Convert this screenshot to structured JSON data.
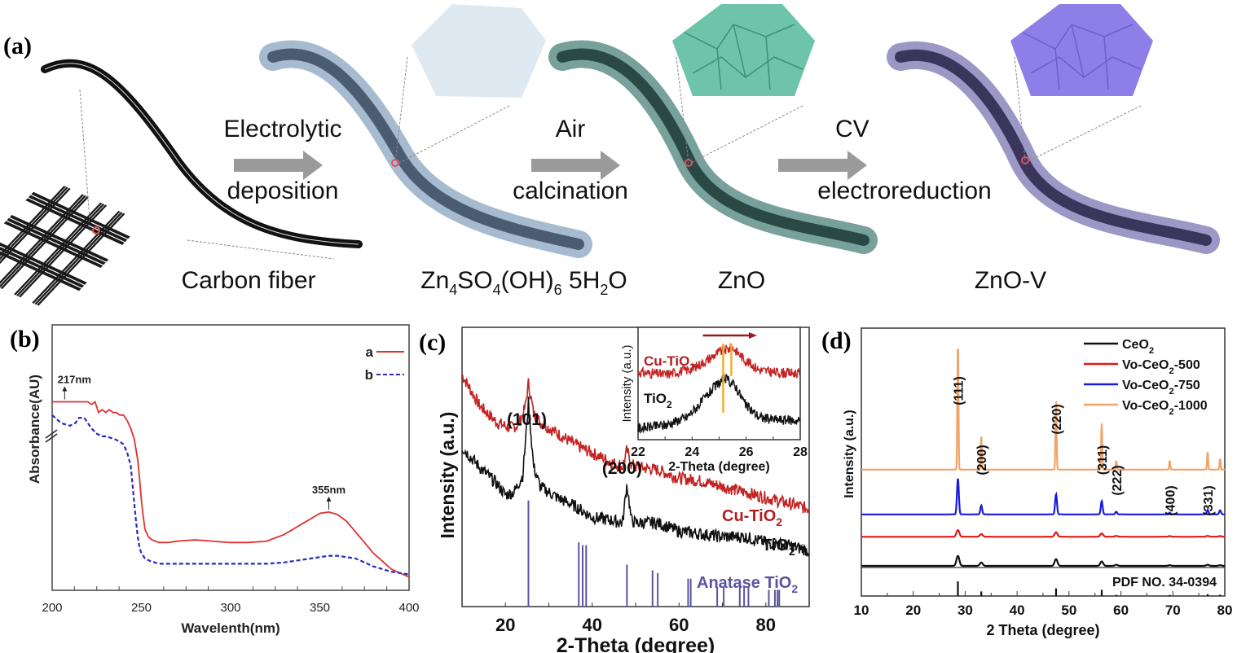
{
  "figure": {
    "panel_labels": [
      "(a)",
      "(b)",
      "(c)",
      "(d)"
    ]
  },
  "schematic": {
    "stages": [
      {
        "label": "Carbon fiber",
        "color": "#1a1a1a"
      },
      {
        "label_main": "Zn",
        "label_parts": [
          "Zn",
          "4",
          "SO",
          "4",
          "(OH)",
          "6",
          " 5H",
          "2",
          "O"
        ],
        "label": "Zn4SO4(OH)6 5H2O",
        "color": "#4a6f95",
        "inset_color": "#dde8f0"
      },
      {
        "label": "ZnO",
        "color": "#1f4a45",
        "inset_color": "#6cc2a7"
      },
      {
        "label": "ZnO-V",
        "color": "#3a3568",
        "inset_color": "#8a7ae6"
      }
    ],
    "arrows": [
      {
        "top": "Electrolytic",
        "bottom": "deposition"
      },
      {
        "top": "Air",
        "bottom": "calcination"
      },
      {
        "top": "CV",
        "bottom": "electroreduction"
      }
    ],
    "arrow_color": "#999999"
  },
  "chart_data": [
    {
      "id": "b",
      "type": "line",
      "title": "",
      "xlabel": "Wavelenth(nm)",
      "ylabel": "Absorbance(AU)",
      "xlim": [
        200,
        400
      ],
      "ylim": [
        0,
        1
      ],
      "xticks": [
        200,
        250,
        300,
        350,
        400
      ],
      "legend": {
        "position": "top-right",
        "entries": [
          "a",
          "b"
        ]
      },
      "annotations": [
        {
          "text": "217nm",
          "x": 207
        },
        {
          "text": "355nm",
          "x": 355
        }
      ],
      "axis_break": true,
      "series": [
        {
          "name": "a",
          "color": "#e03030",
          "style": "solid",
          "x": [
            200,
            205,
            210,
            215,
            220,
            222,
            224,
            226,
            228,
            230,
            232,
            234,
            236,
            238,
            240,
            242,
            244,
            246,
            248,
            249,
            250,
            251,
            252,
            254,
            256,
            258,
            260,
            265,
            270,
            280,
            290,
            300,
            310,
            320,
            330,
            340,
            350,
            355,
            360,
            365,
            370,
            380,
            390,
            400
          ],
          "y": [
            0.71,
            0.71,
            0.71,
            0.71,
            0.71,
            0.7,
            0.71,
            0.67,
            0.68,
            0.67,
            0.68,
            0.67,
            0.67,
            0.66,
            0.66,
            0.64,
            0.61,
            0.57,
            0.49,
            0.42,
            0.34,
            0.28,
            0.23,
            0.2,
            0.19,
            0.185,
            0.18,
            0.18,
            0.185,
            0.19,
            0.185,
            0.18,
            0.18,
            0.185,
            0.21,
            0.25,
            0.29,
            0.295,
            0.285,
            0.26,
            0.22,
            0.14,
            0.08,
            0.05
          ]
        },
        {
          "name": "b",
          "color": "#2a2ab8",
          "style": "dashed",
          "x": [
            200,
            205,
            210,
            213,
            215,
            218,
            220,
            222,
            225,
            228,
            230,
            235,
            238,
            240,
            242,
            244,
            245,
            246,
            247,
            248,
            249,
            250,
            252,
            255,
            260,
            270,
            280,
            290,
            300,
            310,
            320,
            330,
            340,
            350,
            355,
            360,
            370,
            380,
            390,
            400
          ],
          "y": [
            0.66,
            0.63,
            0.62,
            0.63,
            0.65,
            0.65,
            0.63,
            0.61,
            0.59,
            0.58,
            0.58,
            0.57,
            0.56,
            0.55,
            0.52,
            0.47,
            0.4,
            0.33,
            0.26,
            0.2,
            0.16,
            0.14,
            0.12,
            0.11,
            0.1,
            0.1,
            0.1,
            0.1,
            0.1,
            0.1,
            0.1,
            0.105,
            0.115,
            0.125,
            0.13,
            0.13,
            0.12,
            0.09,
            0.07,
            0.06
          ]
        }
      ]
    },
    {
      "id": "c",
      "type": "line",
      "title": "",
      "xlabel": "2-Theta (degree)",
      "ylabel": "Intensity (a.u.)",
      "xlim": [
        10,
        90
      ],
      "ylim": [
        0,
        1
      ],
      "xticks": [
        20,
        40,
        60,
        80
      ],
      "peak_labels": [
        {
          "text": "(101)",
          "x": 25.3
        },
        {
          "text": "(200)",
          "x": 48.0
        }
      ],
      "series": [
        {
          "name": "Cu-TiO2",
          "label": "Cu-TiO",
          "sub": "2",
          "color": "#c42323",
          "x": [
            10,
            14,
            18,
            21,
            23,
            24.5,
            25.3,
            26.5,
            28,
            32,
            36,
            40,
            44,
            47,
            48,
            49,
            50,
            55,
            60,
            65,
            70,
            75,
            80,
            85,
            90
          ],
          "y": [
            0.83,
            0.72,
            0.66,
            0.64,
            0.65,
            0.71,
            0.8,
            0.69,
            0.66,
            0.62,
            0.58,
            0.55,
            0.52,
            0.5,
            0.56,
            0.51,
            0.5,
            0.49,
            0.46,
            0.45,
            0.43,
            0.41,
            0.39,
            0.37,
            0.35
          ]
        },
        {
          "name": "TiO2",
          "label": "TiO",
          "sub": "2",
          "color": "#111111",
          "x": [
            10,
            14,
            18,
            20,
            22,
            24,
            25.3,
            26.5,
            28,
            32,
            36,
            40,
            44,
            47,
            48,
            49,
            50,
            55,
            60,
            65,
            70,
            75,
            80,
            85,
            90
          ],
          "y": [
            0.57,
            0.5,
            0.44,
            0.4,
            0.41,
            0.47,
            0.73,
            0.5,
            0.43,
            0.39,
            0.36,
            0.32,
            0.31,
            0.3,
            0.44,
            0.31,
            0.3,
            0.3,
            0.27,
            0.26,
            0.25,
            0.25,
            0.23,
            0.22,
            0.2
          ]
        },
        {
          "name": "Anatase TiO2",
          "label": "Anatase TiO",
          "sub": "2",
          "color": "#5a55a0",
          "type": "stick",
          "x": [
            25.3,
            36.9,
            37.8,
            38.6,
            48.0,
            53.9,
            55.1,
            62.1,
            62.7,
            68.8,
            70.3,
            74.0,
            75.0,
            76.0,
            80.7,
            82.1,
            82.7,
            83.1
          ],
          "y": [
            0.38,
            0.23,
            0.22,
            0.22,
            0.15,
            0.13,
            0.12,
            0.1,
            0.1,
            0.07,
            0.07,
            0.07,
            0.07,
            0.07,
            0.06,
            0.06,
            0.06,
            0.06
          ]
        }
      ],
      "inset": {
        "xlabel": "2-Theta (degree)",
        "ylabel": "Intensity (a.u.)",
        "xlim": [
          22,
          28
        ],
        "ylim": [
          0,
          1
        ],
        "xticks": [
          22,
          24,
          26,
          28
        ],
        "shift_arrow": {
          "from": 24.4,
          "to": 26.4,
          "color": "#9a1a1a"
        },
        "marker_lines": [
          {
            "x": 25.15,
            "color": "#f0b030"
          },
          {
            "x": 25.45,
            "color": "#f0b030"
          }
        ],
        "series": [
          {
            "name": "Cu-TiO2",
            "label": "Cu-TiO",
            "sub": "2",
            "color": "#c42323",
            "x": [
              22,
              23,
              24,
              24.5,
              25,
              25.5,
              26,
              26.5,
              27,
              28
            ],
            "y": [
              0.6,
              0.58,
              0.63,
              0.7,
              0.78,
              0.82,
              0.7,
              0.62,
              0.6,
              0.59
            ]
          },
          {
            "name": "TiO2",
            "label": "TiO",
            "sub": "2",
            "color": "#111111",
            "x": [
              22,
              23,
              23.8,
              24.3,
              24.8,
              25.2,
              25.6,
              26,
              26.5,
              27,
              28
            ],
            "y": [
              0.1,
              0.13,
              0.2,
              0.32,
              0.46,
              0.55,
              0.48,
              0.3,
              0.2,
              0.18,
              0.17
            ]
          }
        ]
      }
    },
    {
      "id": "d",
      "type": "line",
      "title": "",
      "xlabel": "2 Theta (degree)",
      "ylabel": "Intensity (a.u.)",
      "xlim": [
        10,
        80
      ],
      "ylim": [
        0,
        1
      ],
      "xticks": [
        10,
        20,
        30,
        40,
        50,
        60,
        70,
        80
      ],
      "legend": {
        "position": "top-right"
      },
      "reference_label": "PDF NO. 34-0394",
      "peak_labels": [
        {
          "text": "(111)",
          "x": 28.6
        },
        {
          "text": "(200)",
          "x": 33.1
        },
        {
          "text": "(220)",
          "x": 47.5
        },
        {
          "text": "(311)",
          "x": 56.3
        },
        {
          "text": "(222)",
          "x": 59.1
        },
        {
          "text": "(400)",
          "x": 69.4
        },
        {
          "text": "(331)",
          "x": 76.7
        }
      ],
      "peaks_x": [
        28.6,
        33.1,
        47.5,
        56.3,
        59.1,
        69.4,
        76.7,
        79.1
      ],
      "series": [
        {
          "name": "CeO2",
          "label": "CeO",
          "sub": "2",
          "suffix": "",
          "color": "#111111",
          "baseline": 0.0,
          "peak_heights": [
            0.045,
            0.015,
            0.03,
            0.02,
            0.005,
            0.003,
            0.005,
            0.003
          ],
          "width": 0.55
        },
        {
          "name": "Vo-CeO2-500",
          "label": "Vo-CeO",
          "sub": "2",
          "suffix": "-500",
          "color": "#e01818",
          "baseline": 0.13,
          "peak_heights": [
            0.03,
            0.012,
            0.02,
            0.015,
            0.004,
            0.003,
            0.004,
            0.003
          ],
          "width": 0.55
        },
        {
          "name": "Vo-CeO2-750",
          "label": "Vo-CeO",
          "sub": "2",
          "suffix": "-750",
          "color": "#1a1ae0",
          "baseline": 0.23,
          "peak_heights": [
            0.16,
            0.04,
            0.09,
            0.06,
            0.012,
            0.008,
            0.02,
            0.018
          ],
          "width": 0.35
        },
        {
          "name": "Vo-CeO2-1000",
          "label": "Vo-CeO",
          "sub": "2",
          "suffix": "-1000",
          "color": "#f0a468",
          "baseline": 0.43,
          "peak_heights": [
            0.58,
            0.15,
            0.31,
            0.21,
            0.04,
            0.04,
            0.08,
            0.05
          ],
          "width": 0.2
        }
      ],
      "reference_sticks": {
        "color": "#111111",
        "x": [
          28.6,
          33.1,
          47.5,
          56.3,
          59.1,
          69.4,
          76.7,
          79.1
        ],
        "y": [
          1.0,
          0.31,
          0.52,
          0.42,
          0.08,
          0.07,
          0.13,
          0.09
        ]
      }
    }
  ]
}
